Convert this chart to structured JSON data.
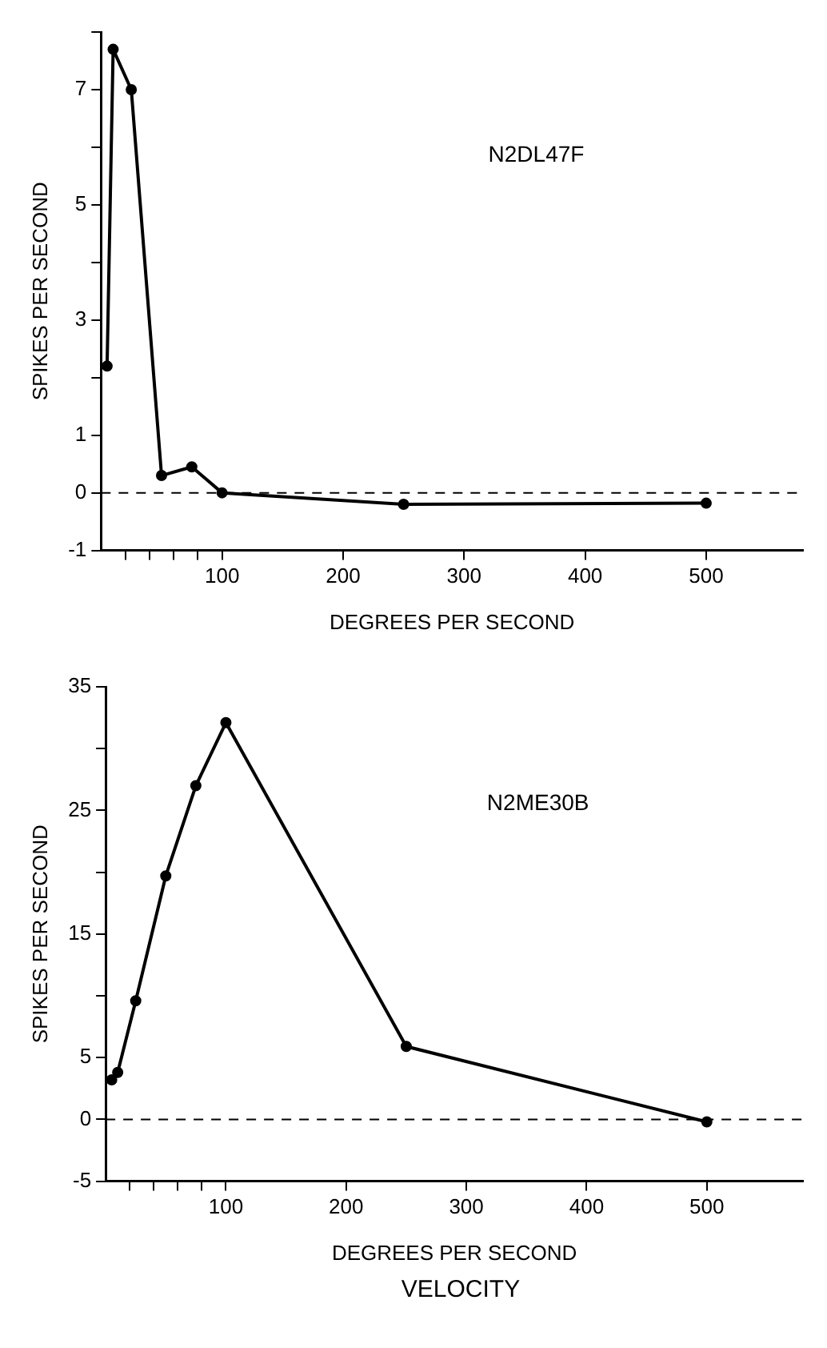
{
  "chart_data": [
    {
      "type": "line",
      "xlabel": "DEGREES PER SECOND",
      "ylabel": "SPIKES PER SECOND",
      "annotations": [
        "N2DL47F"
      ],
      "x": [
        5,
        10,
        25,
        50,
        75,
        100,
        250,
        500
      ],
      "series": [
        {
          "color": "#000000",
          "values": [
            2.2,
            7.7,
            7.0,
            0.3,
            0.45,
            0.0,
            -0.2,
            -0.18
          ]
        }
      ],
      "xlim": [
        0,
        580
      ],
      "xticks": [
        {
          "value": 20,
          "label": null
        },
        {
          "value": 40,
          "label": null
        },
        {
          "value": 60,
          "label": null
        },
        {
          "value": 80,
          "label": null
        },
        100,
        200,
        300,
        400,
        500
      ],
      "ylim": [
        -1,
        8
      ],
      "yticks": [
        -1,
        0,
        1,
        {
          "value": 2,
          "label": null
        },
        3,
        {
          "value": 4,
          "label": null
        },
        5,
        {
          "value": 6,
          "label": null
        },
        7,
        {
          "value": 8,
          "label": null
        }
      ],
      "ref_lines": [
        {
          "axis": "y",
          "value": 0,
          "line_style": "dashed"
        }
      ],
      "grid": false,
      "legend": false,
      "marker": "circle",
      "line_style": "solid"
    },
    {
      "type": "line",
      "xlabel": "DEGREES PER SECOND",
      "ylabel": "SPIKES PER SECOND",
      "annotations": [
        "N2ME30B",
        "VELOCITY"
      ],
      "x": [
        5,
        10,
        25,
        50,
        75,
        100,
        250,
        500
      ],
      "series": [
        {
          "color": "#000000",
          "values": [
            3.2,
            3.8,
            9.6,
            19.7,
            27,
            32.1,
            5.9,
            -0.2
          ]
        }
      ],
      "xlim": [
        0,
        580
      ],
      "xticks": [
        {
          "value": 20,
          "label": null
        },
        {
          "value": 40,
          "label": null
        },
        {
          "value": 60,
          "label": null
        },
        {
          "value": 80,
          "label": null
        },
        100,
        200,
        300,
        400,
        500
      ],
      "ylim": [
        -5,
        35
      ],
      "yticks": [
        -5,
        0,
        5,
        {
          "value": 10,
          "label": null
        },
        15,
        {
          "value": 20,
          "label": null
        },
        25,
        {
          "value": 30,
          "label": null
        },
        35
      ],
      "ref_lines": [
        {
          "axis": "y",
          "value": 0,
          "line_style": "dashed"
        }
      ],
      "grid": false,
      "legend": false,
      "marker": "circle",
      "line_style": "solid"
    }
  ]
}
